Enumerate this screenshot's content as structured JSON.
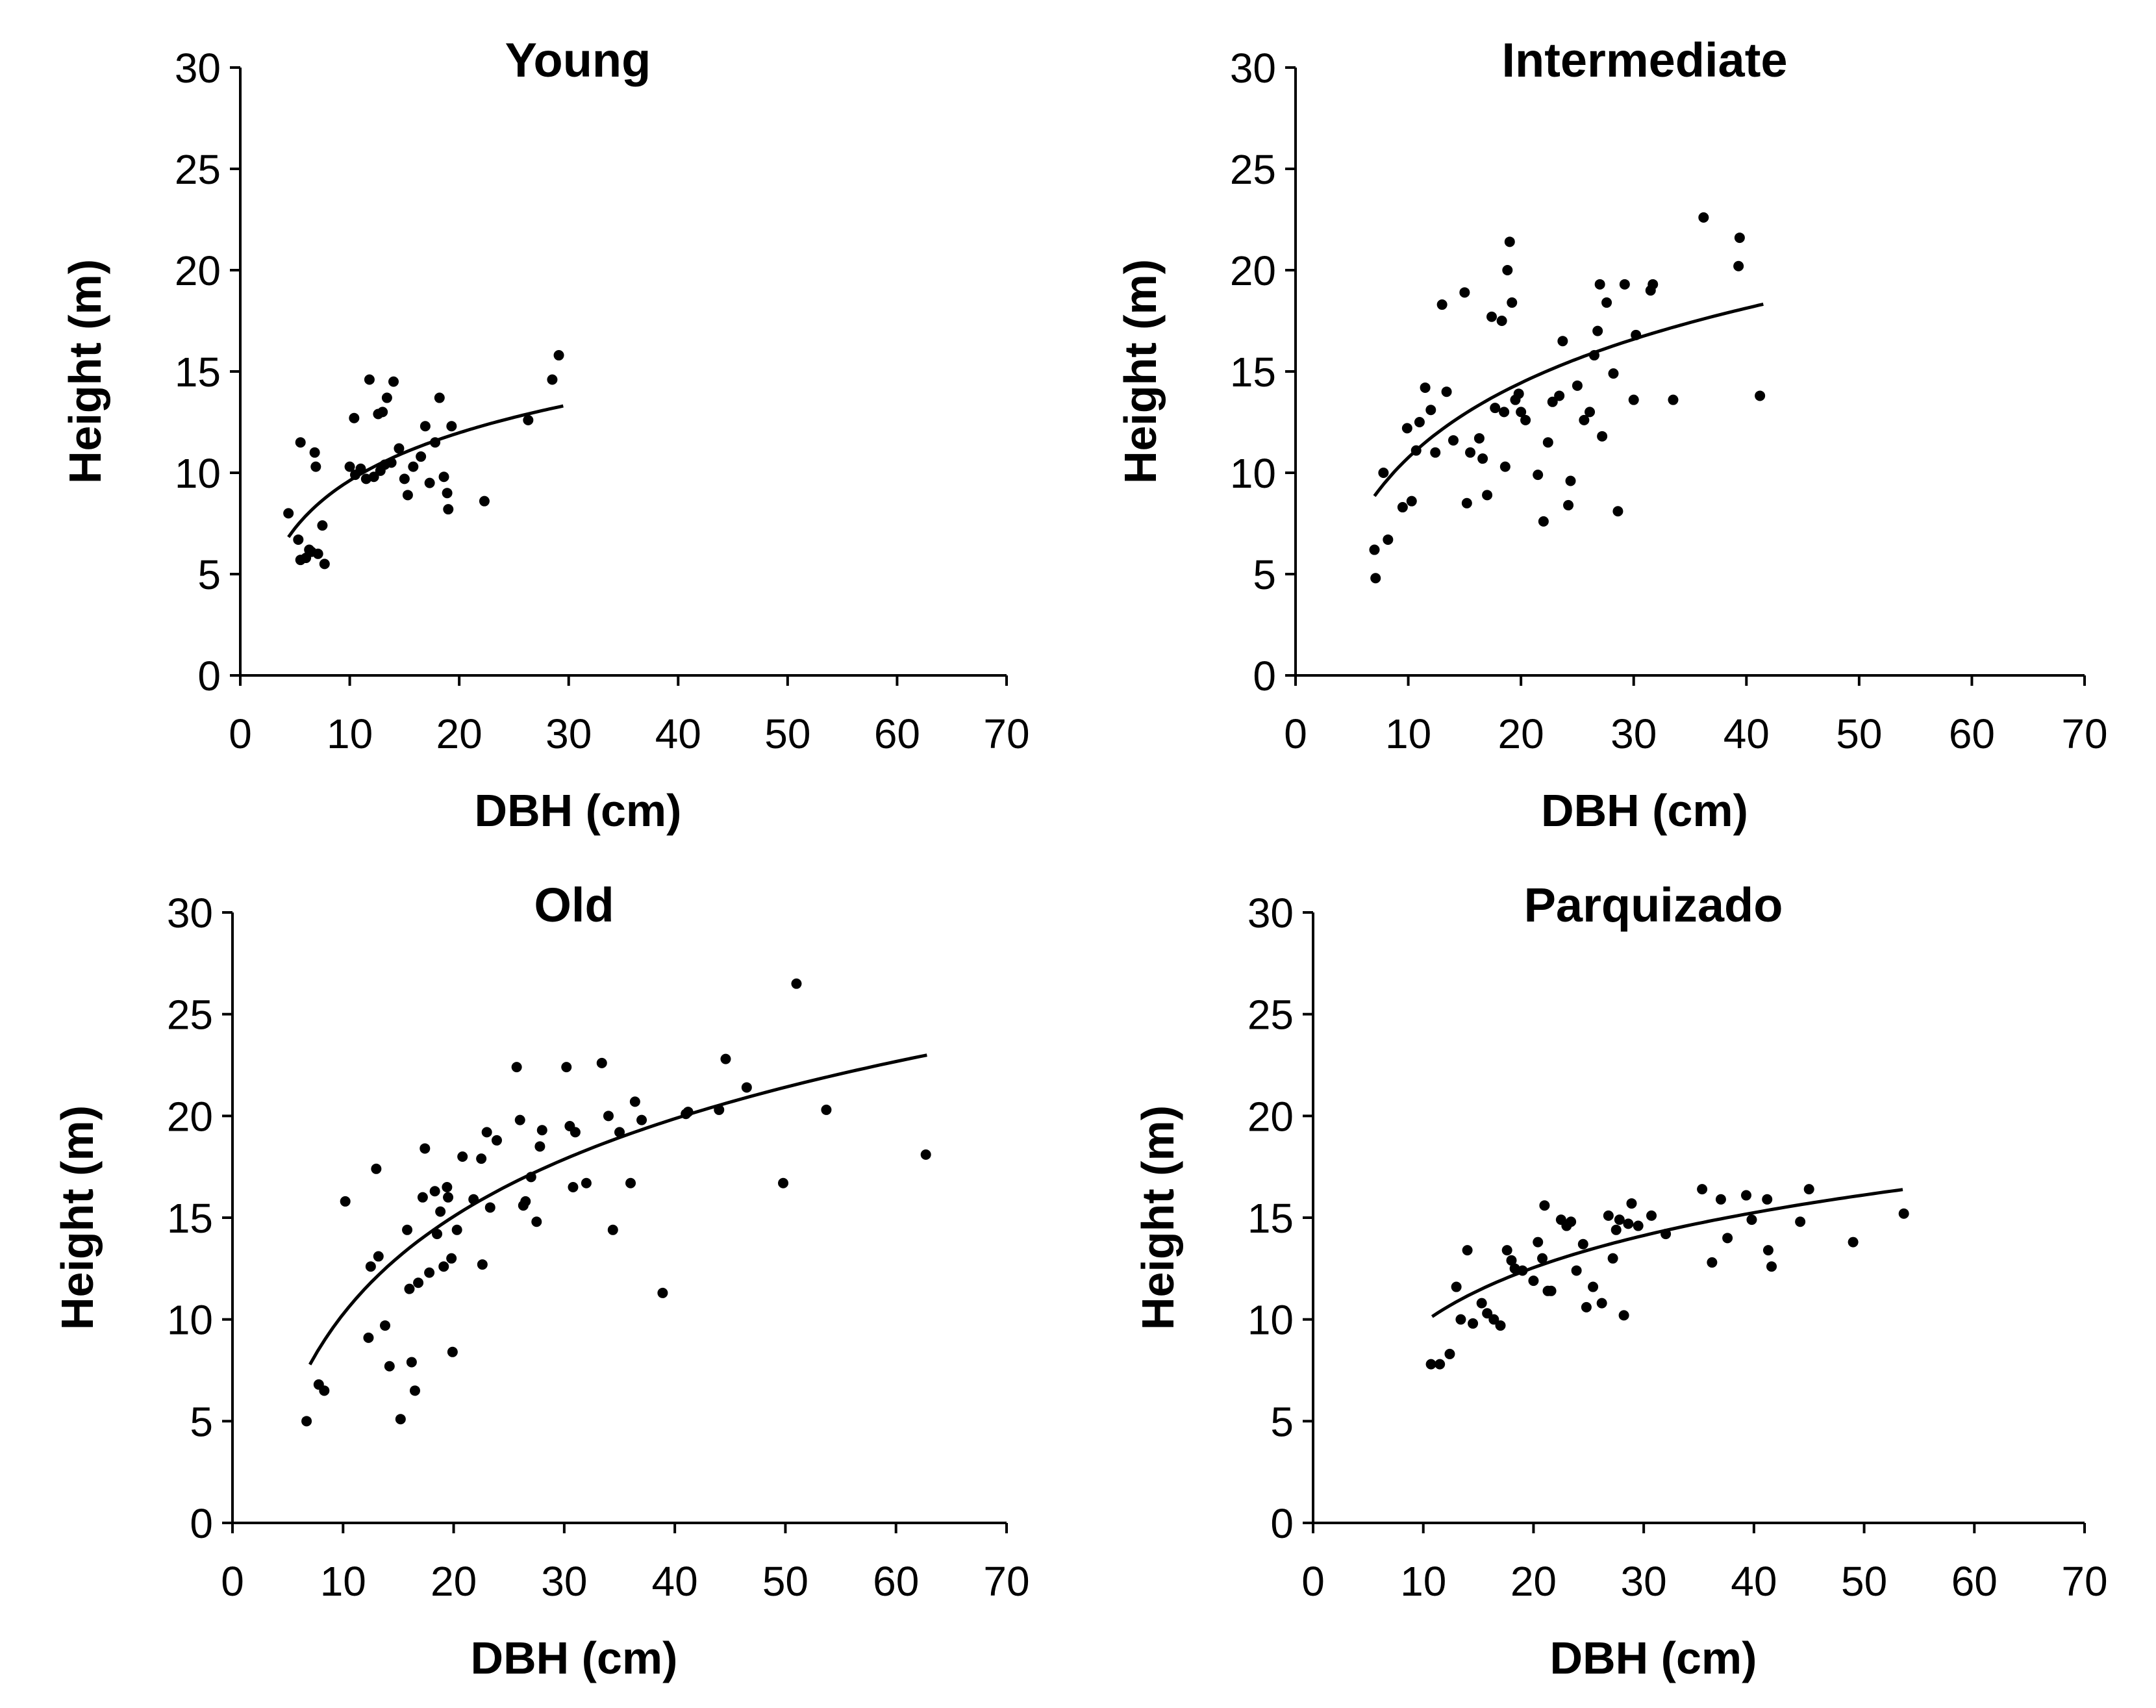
{
  "chart_data": [
    {
      "type": "scatter",
      "title": "Young",
      "xlabel": "DBH (cm)",
      "ylabel": "Height (m)",
      "xlim": [
        0,
        70
      ],
      "ylim": [
        0,
        30
      ],
      "xticks": [
        "0",
        "10",
        "20",
        "30",
        "40",
        "50",
        "60",
        "70"
      ],
      "yticks": [
        "0",
        "5",
        "10",
        "15",
        "20",
        "25",
        "30"
      ],
      "points": [
        [
          4.4,
          8.0
        ],
        [
          5.3,
          6.7
        ],
        [
          5.5,
          11.5
        ],
        [
          5.5,
          5.7
        ],
        [
          6.0,
          5.8
        ],
        [
          6.3,
          6.2
        ],
        [
          6.5,
          6.1
        ],
        [
          6.8,
          11.0
        ],
        [
          6.9,
          10.3
        ],
        [
          7.1,
          6.0
        ],
        [
          7.5,
          7.4
        ],
        [
          7.7,
          5.5
        ],
        [
          10.0,
          10.3
        ],
        [
          10.4,
          12.7
        ],
        [
          10.5,
          9.9
        ],
        [
          11.0,
          10.2
        ],
        [
          11.5,
          9.7
        ],
        [
          11.8,
          14.6
        ],
        [
          12.2,
          9.8
        ],
        [
          12.6,
          12.9
        ],
        [
          12.8,
          10.1
        ],
        [
          13.0,
          13.0
        ],
        [
          13.2,
          10.4
        ],
        [
          13.4,
          13.7
        ],
        [
          13.8,
          10.5
        ],
        [
          14.0,
          14.5
        ],
        [
          14.5,
          11.2
        ],
        [
          15.0,
          9.7
        ],
        [
          15.3,
          8.9
        ],
        [
          15.8,
          10.3
        ],
        [
          16.5,
          10.8
        ],
        [
          16.9,
          12.3
        ],
        [
          17.3,
          9.5
        ],
        [
          17.8,
          11.5
        ],
        [
          18.2,
          13.7
        ],
        [
          18.6,
          9.8
        ],
        [
          18.9,
          9.0
        ],
        [
          19.0,
          8.2
        ],
        [
          19.3,
          12.3
        ],
        [
          22.3,
          8.6
        ],
        [
          26.3,
          12.6
        ],
        [
          28.5,
          14.6
        ],
        [
          29.1,
          15.8
        ]
      ],
      "fit": {
        "a": 1.79,
        "b": 3.4,
        "x_range": [
          4.4,
          29.5
        ]
      }
    },
    {
      "type": "scatter",
      "title": "Intermediate",
      "xlabel": "DBH (cm)",
      "ylabel": "Height (m)",
      "xlim": [
        0,
        70
      ],
      "ylim": [
        0,
        30
      ],
      "xticks": [
        "0",
        "10",
        "20",
        "30",
        "40",
        "50",
        "60",
        "70"
      ],
      "yticks": [
        "0",
        "5",
        "10",
        "15",
        "20",
        "25",
        "30"
      ],
      "points": [
        [
          7.0,
          6.2
        ],
        [
          7.1,
          4.8
        ],
        [
          7.8,
          10.0
        ],
        [
          8.2,
          6.7
        ],
        [
          9.5,
          8.3
        ],
        [
          9.9,
          12.2
        ],
        [
          10.3,
          8.6
        ],
        [
          10.7,
          11.1
        ],
        [
          11.0,
          12.5
        ],
        [
          11.5,
          14.2
        ],
        [
          12.0,
          13.1
        ],
        [
          12.4,
          11.0
        ],
        [
          13.0,
          18.3
        ],
        [
          13.4,
          14.0
        ],
        [
          14.0,
          11.6
        ],
        [
          15.0,
          18.9
        ],
        [
          15.2,
          8.5
        ],
        [
          15.5,
          11.0
        ],
        [
          16.3,
          11.7
        ],
        [
          16.6,
          10.7
        ],
        [
          17.0,
          8.9
        ],
        [
          17.4,
          17.7
        ],
        [
          17.7,
          13.2
        ],
        [
          18.3,
          17.5
        ],
        [
          18.5,
          13.0
        ],
        [
          18.6,
          10.3
        ],
        [
          18.8,
          20.0
        ],
        [
          19.0,
          21.4
        ],
        [
          19.2,
          18.4
        ],
        [
          19.5,
          13.6
        ],
        [
          19.8,
          13.9
        ],
        [
          20.0,
          13.0
        ],
        [
          20.4,
          12.6
        ],
        [
          21.5,
          9.9
        ],
        [
          22.0,
          7.6
        ],
        [
          22.4,
          11.5
        ],
        [
          22.8,
          13.5
        ],
        [
          23.4,
          13.8
        ],
        [
          23.7,
          16.5
        ],
        [
          24.2,
          8.4
        ],
        [
          24.4,
          9.6
        ],
        [
          25.0,
          14.3
        ],
        [
          25.6,
          12.6
        ],
        [
          26.1,
          13.0
        ],
        [
          26.5,
          15.8
        ],
        [
          26.8,
          17.0
        ],
        [
          27.0,
          19.3
        ],
        [
          27.2,
          11.8
        ],
        [
          27.6,
          18.4
        ],
        [
          28.2,
          14.9
        ],
        [
          28.6,
          8.1
        ],
        [
          29.2,
          19.3
        ],
        [
          30.0,
          13.6
        ],
        [
          30.2,
          16.8
        ],
        [
          31.5,
          19.0
        ],
        [
          31.7,
          19.3
        ],
        [
          33.5,
          13.6
        ],
        [
          36.2,
          22.6
        ],
        [
          39.3,
          20.2
        ],
        [
          39.4,
          21.6
        ],
        [
          41.2,
          13.8
        ]
      ],
      "fit": {
        "a": -1.5,
        "b": 5.32,
        "x_range": [
          7.0,
          41.5
        ]
      }
    },
    {
      "type": "scatter",
      "title": "Old",
      "xlabel": "DBH (cm)",
      "ylabel": "Height (m)",
      "xlim": [
        0,
        70
      ],
      "ylim": [
        0,
        30
      ],
      "xticks": [
        "0",
        "10",
        "20",
        "30",
        "40",
        "50",
        "60",
        "70"
      ],
      "yticks": [
        "0",
        "5",
        "10",
        "15",
        "20",
        "25",
        "30"
      ],
      "points": [
        [
          6.7,
          5.0
        ],
        [
          7.8,
          6.8
        ],
        [
          8.3,
          6.5
        ],
        [
          10.2,
          15.8
        ],
        [
          12.3,
          9.1
        ],
        [
          12.5,
          12.6
        ],
        [
          13.0,
          17.4
        ],
        [
          13.2,
          13.1
        ],
        [
          13.8,
          9.7
        ],
        [
          14.2,
          7.7
        ],
        [
          15.2,
          5.1
        ],
        [
          15.8,
          14.4
        ],
        [
          16.0,
          11.5
        ],
        [
          16.2,
          7.9
        ],
        [
          16.5,
          6.5
        ],
        [
          16.8,
          11.8
        ],
        [
          17.2,
          16.0
        ],
        [
          17.4,
          18.4
        ],
        [
          17.8,
          12.3
        ],
        [
          18.3,
          16.3
        ],
        [
          18.5,
          14.2
        ],
        [
          18.8,
          15.3
        ],
        [
          19.1,
          12.6
        ],
        [
          19.4,
          16.5
        ],
        [
          19.5,
          16.0
        ],
        [
          19.8,
          13.0
        ],
        [
          19.9,
          8.4
        ],
        [
          20.3,
          14.4
        ],
        [
          20.8,
          18.0
        ],
        [
          21.8,
          15.9
        ],
        [
          22.5,
          17.9
        ],
        [
          22.6,
          12.7
        ],
        [
          23.0,
          19.2
        ],
        [
          23.3,
          15.5
        ],
        [
          23.9,
          18.8
        ],
        [
          25.7,
          22.4
        ],
        [
          26.0,
          19.8
        ],
        [
          26.3,
          15.6
        ],
        [
          26.5,
          15.8
        ],
        [
          27.0,
          17.0
        ],
        [
          27.5,
          14.8
        ],
        [
          27.8,
          18.5
        ],
        [
          28.0,
          19.3
        ],
        [
          30.2,
          22.4
        ],
        [
          30.5,
          19.5
        ],
        [
          30.8,
          16.5
        ],
        [
          31.0,
          19.2
        ],
        [
          32.0,
          16.7
        ],
        [
          33.4,
          22.6
        ],
        [
          34.0,
          20.0
        ],
        [
          34.4,
          14.4
        ],
        [
          35.0,
          19.2
        ],
        [
          36.0,
          16.7
        ],
        [
          36.4,
          20.7
        ],
        [
          37.0,
          19.8
        ],
        [
          38.9,
          11.3
        ],
        [
          41.0,
          20.1
        ],
        [
          41.2,
          20.2
        ],
        [
          44.0,
          20.3
        ],
        [
          44.6,
          22.8
        ],
        [
          46.5,
          21.4
        ],
        [
          49.8,
          16.7
        ],
        [
          51.0,
          26.5
        ],
        [
          53.7,
          20.3
        ],
        [
          62.7,
          18.1
        ]
      ],
      "fit": {
        "a": -5.7,
        "b": 6.93,
        "x_range": [
          7.0,
          62.8
        ]
      }
    },
    {
      "type": "scatter",
      "title": "Parquizado",
      "xlabel": "DBH (cm)",
      "ylabel": "Height (m)",
      "xlim": [
        0,
        70
      ],
      "ylim": [
        0,
        30
      ],
      "xticks": [
        "0",
        "10",
        "20",
        "30",
        "40",
        "50",
        "60",
        "70"
      ],
      "yticks": [
        "0",
        "5",
        "10",
        "15",
        "20",
        "25",
        "30"
      ],
      "points": [
        [
          10.7,
          7.8
        ],
        [
          11.5,
          7.8
        ],
        [
          12.4,
          8.3
        ],
        [
          13.0,
          11.6
        ],
        [
          13.4,
          10.0
        ],
        [
          14.0,
          13.4
        ],
        [
          14.5,
          9.8
        ],
        [
          15.3,
          10.8
        ],
        [
          15.8,
          10.3
        ],
        [
          16.4,
          10.0
        ],
        [
          17.0,
          9.7
        ],
        [
          17.6,
          13.4
        ],
        [
          18.0,
          12.9
        ],
        [
          18.3,
          12.5
        ],
        [
          19.0,
          12.4
        ],
        [
          20.0,
          11.9
        ],
        [
          20.4,
          13.8
        ],
        [
          20.8,
          13.0
        ],
        [
          21.0,
          15.6
        ],
        [
          21.3,
          11.4
        ],
        [
          21.6,
          11.4
        ],
        [
          22.5,
          14.9
        ],
        [
          23.0,
          14.6
        ],
        [
          23.4,
          14.8
        ],
        [
          23.9,
          12.4
        ],
        [
          24.5,
          13.7
        ],
        [
          24.8,
          10.6
        ],
        [
          25.4,
          11.6
        ],
        [
          26.2,
          10.8
        ],
        [
          26.8,
          15.1
        ],
        [
          27.2,
          13.0
        ],
        [
          27.5,
          14.4
        ],
        [
          27.8,
          14.9
        ],
        [
          28.2,
          10.2
        ],
        [
          28.6,
          14.7
        ],
        [
          28.9,
          15.7
        ],
        [
          29.5,
          14.6
        ],
        [
          30.7,
          15.1
        ],
        [
          32.0,
          14.2
        ],
        [
          35.3,
          16.4
        ],
        [
          36.2,
          12.8
        ],
        [
          37.0,
          15.9
        ],
        [
          37.6,
          14.0
        ],
        [
          39.3,
          16.1
        ],
        [
          39.8,
          14.9
        ],
        [
          41.2,
          15.9
        ],
        [
          41.3,
          13.4
        ],
        [
          41.6,
          12.6
        ],
        [
          44.2,
          14.8
        ],
        [
          45.0,
          16.4
        ],
        [
          49.0,
          13.8
        ],
        [
          53.6,
          15.2
        ]
      ],
      "fit": {
        "a": 0.86,
        "b": 3.9,
        "x_range": [
          10.8,
          53.5
        ]
      }
    }
  ]
}
